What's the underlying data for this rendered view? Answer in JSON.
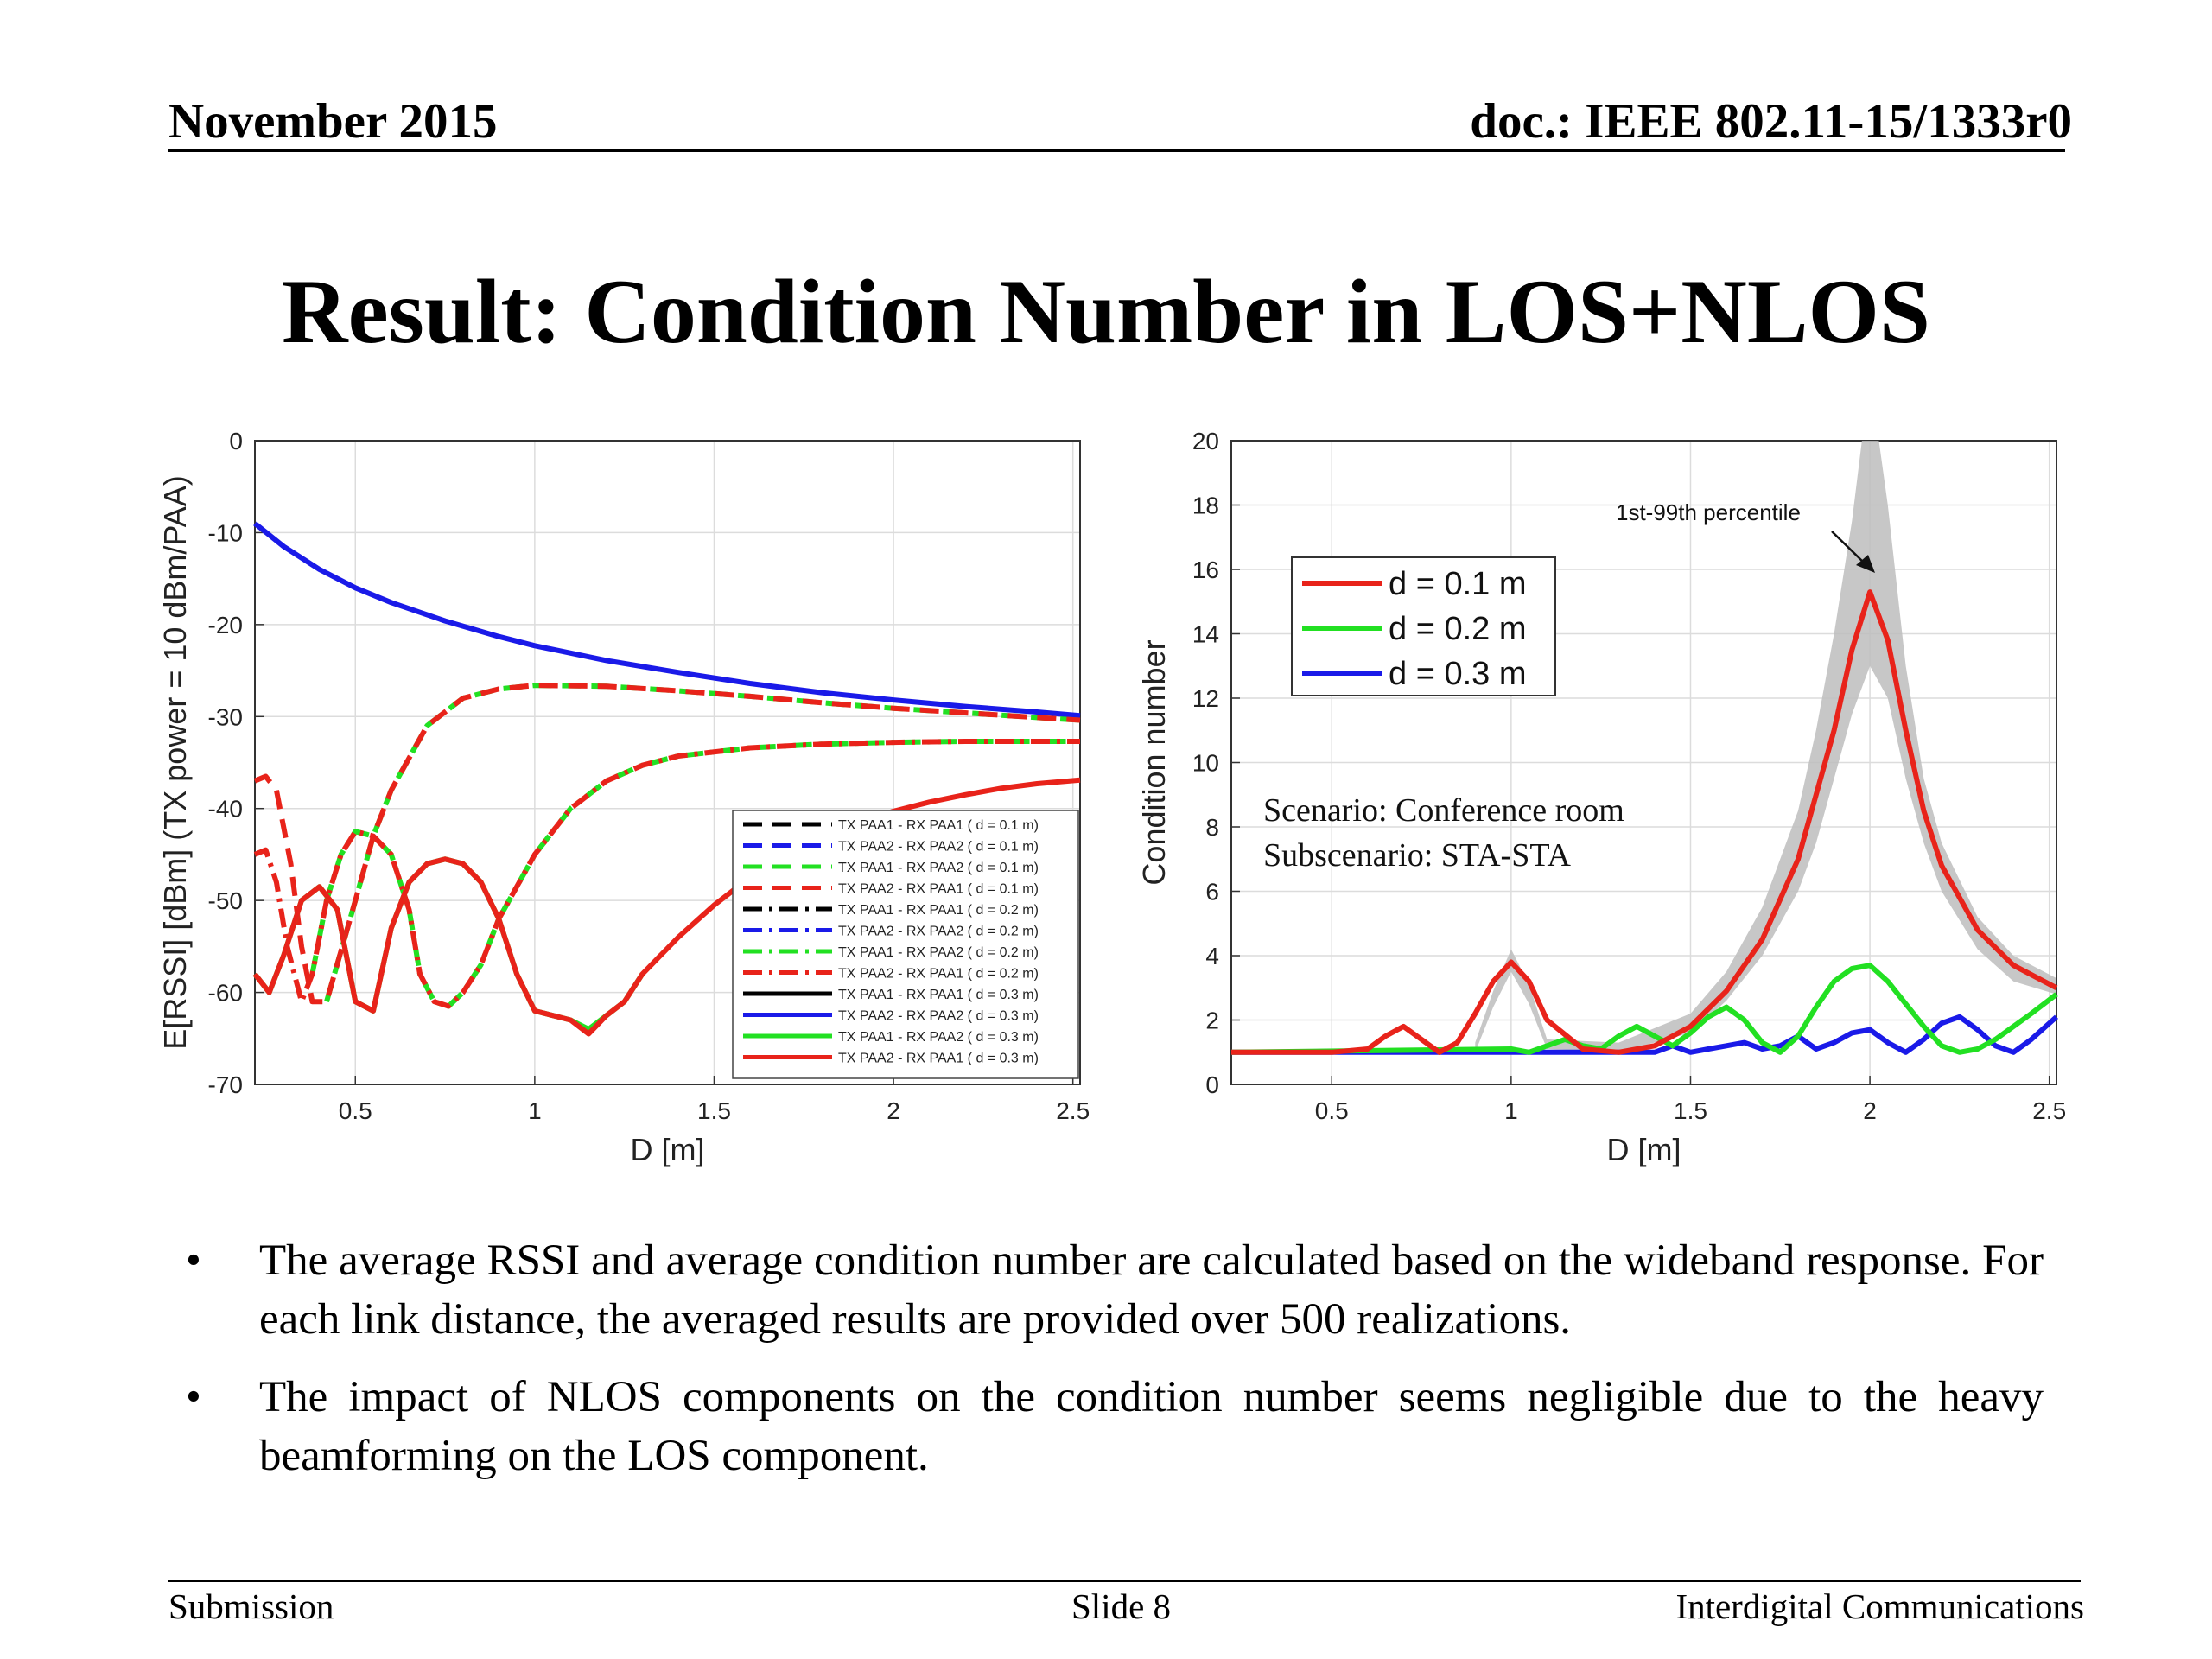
{
  "header": {
    "left": "November 2015",
    "right": "doc.: IEEE 802.11-15/1333r0"
  },
  "title": "Result: Condition Number in LOS+NLOS",
  "bullets": [
    "The average RSSI and average condition number are calculated based on the wideband response. For each link distance, the averaged results are provided over 500 realizations.",
    "The impact of NLOS components on the condition number seems negligible due to the heavy beamforming on the LOS component."
  ],
  "footer": {
    "left": "Submission",
    "center": "Slide 8",
    "right": "Interdigital Communications"
  },
  "colors": {
    "red": "#e8231a",
    "green": "#22e022",
    "blue": "#1a1ae8",
    "black": "#000000",
    "band": "#bdbdbd"
  },
  "chart_data": [
    {
      "type": "line",
      "xlabel": "D [m]",
      "ylabel": "E[RSSI] [dBm] (TX power = 10 dBm/PAA)",
      "xlim": [
        0.22,
        2.52
      ],
      "ylim": [
        -70,
        0
      ],
      "xticks": [
        0.5,
        1,
        1.5,
        2,
        2.5
      ],
      "yticks": [
        -70,
        -60,
        -50,
        -40,
        -30,
        -20,
        -10,
        0
      ],
      "grid": true,
      "legend_position": "bottom-right",
      "legend": [
        {
          "label": "TX PAA1 - RX PAA1 ( d = 0.1 m)",
          "color": "black",
          "dash": "dashed"
        },
        {
          "label": "TX PAA2 - RX PAA2 ( d = 0.1 m)",
          "color": "blue",
          "dash": "dashed"
        },
        {
          "label": "TX PAA1 - RX PAA2 ( d = 0.1 m)",
          "color": "green",
          "dash": "dashed"
        },
        {
          "label": "TX PAA2 - RX PAA1 ( d = 0.1 m)",
          "color": "red",
          "dash": "dashed"
        },
        {
          "label": "TX PAA1 - RX PAA1 ( d = 0.2 m)",
          "color": "black",
          "dash": "dashdot"
        },
        {
          "label": "TX PAA2 - RX PAA2 ( d = 0.2 m)",
          "color": "blue",
          "dash": "dashdot"
        },
        {
          "label": "TX PAA1 - RX PAA2 ( d = 0.2 m)",
          "color": "green",
          "dash": "dashdot"
        },
        {
          "label": "TX PAA2 - RX PAA1 ( d = 0.2 m)",
          "color": "red",
          "dash": "dashdot"
        },
        {
          "label": "TX PAA1 - RX PAA1 ( d = 0.3 m)",
          "color": "black",
          "dash": "solid"
        },
        {
          "label": "TX PAA2 - RX PAA2 ( d = 0.3 m)",
          "color": "blue",
          "dash": "solid"
        },
        {
          "label": "TX PAA1 - RX PAA2 ( d = 0.3 m)",
          "color": "green",
          "dash": "solid"
        },
        {
          "label": "TX PAA2 - RX PAA1 ( d = 0.3 m)",
          "color": "red",
          "dash": "solid"
        }
      ],
      "series": [
        {
          "color": "blue",
          "dash": "solid",
          "x": [
            0.22,
            0.3,
            0.4,
            0.5,
            0.6,
            0.75,
            0.9,
            1.0,
            1.2,
            1.4,
            1.6,
            1.8,
            2.0,
            2.2,
            2.4,
            2.52
          ],
          "y": [
            -9,
            -11.5,
            -14,
            -16,
            -17.6,
            -19.6,
            -21.3,
            -22.3,
            -23.9,
            -25.2,
            -26.4,
            -27.4,
            -28.2,
            -28.9,
            -29.5,
            -29.9
          ]
        },
        {
          "color": "green",
          "dash": "dashed",
          "x": [
            0.42,
            0.5,
            0.55,
            0.6,
            0.7,
            0.8,
            0.9,
            1.0,
            1.2,
            1.4,
            1.6,
            1.8,
            2.0,
            2.2,
            2.4,
            2.52
          ],
          "y": [
            -61,
            -50,
            -43,
            -38,
            -31,
            -28,
            -27,
            -26.6,
            -26.7,
            -27.2,
            -27.8,
            -28.5,
            -29.1,
            -29.6,
            -30.1,
            -30.4
          ]
        },
        {
          "color": "red",
          "dash": "dashed",
          "x": [
            0.22,
            0.25,
            0.28,
            0.32,
            0.35,
            0.38,
            0.42,
            0.5,
            0.55,
            0.6,
            0.7,
            0.8,
            0.9,
            1.0,
            1.2,
            1.4,
            1.6,
            1.8,
            2.0,
            2.2,
            2.4,
            2.52
          ],
          "y": [
            -37,
            -36.5,
            -38,
            -46,
            -55,
            -61,
            -61,
            -50,
            -43,
            -38,
            -31,
            -28,
            -27,
            -26.6,
            -26.7,
            -27.2,
            -27.8,
            -28.5,
            -29.1,
            -29.6,
            -30.1,
            -30.4
          ]
        },
        {
          "color": "green",
          "dash": "dashdot",
          "x": [
            0.38,
            0.42,
            0.46,
            0.5,
            0.55,
            0.6,
            0.65,
            0.68,
            0.72,
            0.76,
            0.8,
            0.85,
            0.9,
            1.0,
            1.1,
            1.2,
            1.3,
            1.4,
            1.6,
            1.8,
            2.0,
            2.2,
            2.4,
            2.52
          ],
          "y": [
            -58,
            -50,
            -45,
            -42.5,
            -43,
            -45,
            -51,
            -58,
            -61,
            -61.5,
            -60,
            -57,
            -52,
            -45,
            -40,
            -37,
            -35.3,
            -34.3,
            -33.4,
            -33.0,
            -32.8,
            -32.7,
            -32.7,
            -32.7
          ]
        },
        {
          "color": "red",
          "dash": "dashdot",
          "x": [
            0.22,
            0.25,
            0.28,
            0.31,
            0.35,
            0.38,
            0.42,
            0.46,
            0.5,
            0.55,
            0.6,
            0.65,
            0.68,
            0.72,
            0.76,
            0.8,
            0.85,
            0.9,
            1.0,
            1.1,
            1.2,
            1.3,
            1.4,
            1.6,
            1.8,
            2.0,
            2.2,
            2.4,
            2.52
          ],
          "y": [
            -45,
            -44.5,
            -48,
            -55,
            -61,
            -58,
            -50,
            -45,
            -42.5,
            -43,
            -45,
            -51,
            -58,
            -61,
            -61.5,
            -60,
            -57,
            -52,
            -45,
            -40,
            -37,
            -35.3,
            -34.3,
            -33.4,
            -33.0,
            -32.8,
            -32.7,
            -32.7,
            -32.7
          ]
        },
        {
          "color": "green",
          "dash": "solid",
          "x": [
            0.22,
            0.26,
            0.3,
            0.35,
            0.4,
            0.45,
            0.5,
            0.55,
            0.6,
            0.65,
            0.7,
            0.75,
            0.8,
            0.85,
            0.9,
            0.95,
            1.0,
            1.05,
            1.1,
            1.15,
            1.2,
            1.25,
            1.3
          ],
          "y": [
            -58,
            -60,
            -56,
            -50,
            -48.5,
            -51,
            -61,
            -62,
            -53,
            -48,
            -46,
            -45.5,
            -46,
            -48,
            -52,
            -58,
            -62,
            -62.5,
            -63,
            -64,
            -62.5,
            -61,
            -58
          ]
        },
        {
          "color": "red",
          "dash": "solid",
          "x": [
            0.22,
            0.26,
            0.3,
            0.35,
            0.4,
            0.45,
            0.5,
            0.55,
            0.6,
            0.65,
            0.7,
            0.75,
            0.8,
            0.85,
            0.9,
            0.95,
            1.0,
            1.05,
            1.1,
            1.15,
            1.2,
            1.25,
            1.3,
            1.4,
            1.5,
            1.6,
            1.7,
            1.8,
            1.9,
            2.0,
            2.1,
            2.2,
            2.3,
            2.4,
            2.52
          ],
          "y": [
            -58,
            -60,
            -56,
            -50,
            -48.5,
            -51,
            -61,
            -62,
            -53,
            -48,
            -46,
            -45.5,
            -46,
            -48,
            -52,
            -58,
            -62,
            -62.5,
            -63,
            -64.5,
            -62.5,
            -61,
            -58,
            -54,
            -50.5,
            -47.5,
            -45,
            -43,
            -41.5,
            -40.3,
            -39.3,
            -38.5,
            -37.8,
            -37.3,
            -36.9
          ]
        }
      ]
    },
    {
      "type": "line",
      "xlabel": "D [m]",
      "ylabel": "Condition number",
      "xlim": [
        0.22,
        2.52
      ],
      "ylim": [
        0,
        20
      ],
      "xticks": [
        0.5,
        1,
        1.5,
        2,
        2.5
      ],
      "yticks": [
        0,
        2,
        4,
        6,
        8,
        10,
        12,
        14,
        16,
        18,
        20
      ],
      "grid": true,
      "legend_position": "top-left",
      "legend": [
        {
          "label": "d = 0.1 m",
          "color": "red"
        },
        {
          "label": "d = 0.2 m",
          "color": "green"
        },
        {
          "label": "d = 0.3 m",
          "color": "blue"
        }
      ],
      "annotations": {
        "percentile": "1st-99th percentile",
        "scenario": "Scenario: Conference room",
        "subscenario": "Subscenario: STA-STA"
      },
      "band": {
        "x": [
          0.9,
          0.95,
          1.0,
          1.05,
          1.1,
          1.3,
          1.5,
          1.6,
          1.7,
          1.8,
          1.85,
          1.9,
          1.95,
          2.0,
          2.05,
          2.1,
          2.15,
          2.2,
          2.3,
          2.4,
          2.52
        ],
        "upper": [
          1.3,
          2.9,
          4.2,
          3.1,
          1.4,
          1.3,
          2.2,
          3.5,
          5.5,
          8.5,
          11,
          14,
          17.5,
          22,
          18,
          13,
          9.5,
          7.5,
          5.2,
          4.0,
          3.3
        ],
        "lower": [
          1.0,
          2.4,
          3.5,
          2.5,
          1.1,
          1.0,
          1.6,
          2.6,
          4.0,
          6.0,
          7.5,
          9.5,
          11.5,
          13,
          12,
          9.5,
          7.5,
          6.0,
          4.2,
          3.2,
          2.8
        ]
      },
      "series": [
        {
          "name": "d = 0.1 m",
          "color": "red",
          "x": [
            0.22,
            0.5,
            0.6,
            0.65,
            0.7,
            0.75,
            0.8,
            0.85,
            0.9,
            0.95,
            1.0,
            1.05,
            1.1,
            1.2,
            1.3,
            1.4,
            1.5,
            1.6,
            1.7,
            1.8,
            1.85,
            1.9,
            1.95,
            2.0,
            2.05,
            2.1,
            2.15,
            2.2,
            2.3,
            2.4,
            2.52
          ],
          "y": [
            1.0,
            1.0,
            1.1,
            1.5,
            1.8,
            1.4,
            1.0,
            1.3,
            2.2,
            3.2,
            3.8,
            3.2,
            2.0,
            1.1,
            1.0,
            1.2,
            1.8,
            2.9,
            4.5,
            7.0,
            9.0,
            11.0,
            13.5,
            15.3,
            13.8,
            11.0,
            8.5,
            6.8,
            4.8,
            3.7,
            3.0
          ]
        },
        {
          "name": "d = 0.2 m",
          "color": "green",
          "x": [
            0.22,
            1.0,
            1.05,
            1.1,
            1.15,
            1.2,
            1.25,
            1.3,
            1.35,
            1.4,
            1.45,
            1.5,
            1.55,
            1.6,
            1.65,
            1.7,
            1.75,
            1.8,
            1.85,
            1.9,
            1.95,
            2.0,
            2.05,
            2.1,
            2.15,
            2.2,
            2.25,
            2.3,
            2.35,
            2.4,
            2.45,
            2.52
          ],
          "y": [
            1.0,
            1.1,
            1.0,
            1.2,
            1.4,
            1.2,
            1.1,
            1.5,
            1.8,
            1.5,
            1.2,
            1.6,
            2.1,
            2.4,
            2.0,
            1.3,
            1.0,
            1.5,
            2.4,
            3.2,
            3.6,
            3.7,
            3.2,
            2.5,
            1.8,
            1.2,
            1.0,
            1.1,
            1.4,
            1.8,
            2.2,
            2.8
          ]
        },
        {
          "name": "d = 0.3 m",
          "color": "blue",
          "x": [
            0.22,
            1.4,
            1.45,
            1.5,
            1.55,
            1.6,
            1.65,
            1.7,
            1.75,
            1.8,
            1.85,
            1.9,
            1.95,
            2.0,
            2.05,
            2.1,
            2.15,
            2.2,
            2.25,
            2.3,
            2.35,
            2.4,
            2.45,
            2.52
          ],
          "y": [
            1.0,
            1.0,
            1.2,
            1.0,
            1.1,
            1.2,
            1.3,
            1.1,
            1.2,
            1.5,
            1.1,
            1.3,
            1.6,
            1.7,
            1.3,
            1.0,
            1.4,
            1.9,
            2.1,
            1.7,
            1.2,
            1.0,
            1.4,
            2.1
          ]
        }
      ]
    }
  ]
}
